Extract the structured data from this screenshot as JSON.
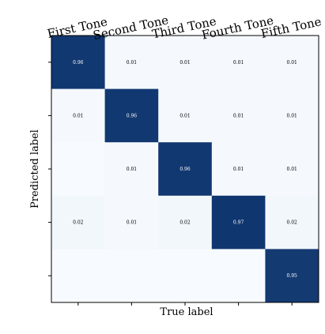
{
  "chart_data": {
    "type": "heatmap",
    "title": "",
    "xlabel": "True label",
    "ylabel": "Predicted label",
    "categories": [
      "First Tone",
      "Second Tone",
      "Third Tone",
      "Fourth Tone",
      "Fifth Tone"
    ],
    "tick_labels_shown": "top-x-only",
    "value_range": [
      0,
      1
    ],
    "colors": {
      "low": "#f7fbff",
      "high": "#08306b",
      "text_on_dark": "#ffffff",
      "text_on_light": "#000000"
    },
    "matrix": [
      [
        0.96,
        0.01,
        0.01,
        0.01,
        0.01
      ],
      [
        0.01,
        0.96,
        0.01,
        0.01,
        0.01
      ],
      [
        null,
        0.01,
        0.96,
        0.01,
        0.01
      ],
      [
        0.02,
        0.01,
        0.02,
        0.97,
        0.02
      ],
      [
        null,
        null,
        null,
        null,
        0.95
      ]
    ],
    "cell_labels": [
      [
        "0.96",
        "0.01",
        "0.01",
        "0.01",
        "0.01"
      ],
      [
        "0.01",
        "0.96",
        "0.01",
        "0.01",
        "0.01"
      ],
      [
        "",
        "0.01",
        "0.96",
        "0.01",
        "0.01"
      ],
      [
        "0.02",
        "0.01",
        "0.02",
        "0.97",
        "0.02"
      ],
      [
        "",
        "",
        "",
        "",
        "0.95"
      ]
    ]
  }
}
